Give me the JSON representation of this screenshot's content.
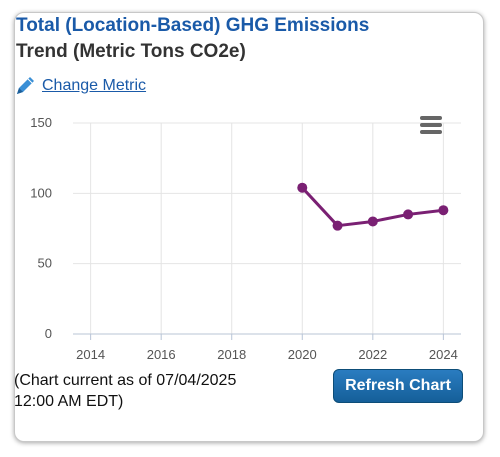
{
  "header": {
    "title_line1": "Total (Location-Based) GHG Emissions",
    "title_line2": "Trend (Metric Tons CO2e)",
    "change_metric_label": "Change Metric"
  },
  "icons": {
    "change_metric": "pencil-icon",
    "chart_menu": "hamburger-menu-icon"
  },
  "footer": {
    "note_line1": "(Chart current as of 07/04/2025",
    "note_line2": "12:00 AM EDT)",
    "refresh_label": "Refresh Chart"
  },
  "colors": {
    "title": "#1a5aa8",
    "series": "#7a2073",
    "button": "#155f99"
  },
  "chart_data": {
    "type": "line",
    "title": "Total (Location-Based) GHG Emissions Trend (Metric Tons CO2e)",
    "xlabel": "",
    "ylabel": "",
    "xlim": [
      2013.5,
      2024.5
    ],
    "ylim": [
      0,
      150
    ],
    "x_ticks": [
      2014,
      2016,
      2018,
      2020,
      2022,
      2024
    ],
    "y_ticks": [
      0,
      50,
      100,
      150
    ],
    "grid": true,
    "legend": "none",
    "series": [
      {
        "x": [
          2020,
          2021,
          2022,
          2023,
          2024
        ],
        "values": [
          104,
          77,
          80,
          85,
          88
        ],
        "color": "#7a2073"
      }
    ]
  }
}
